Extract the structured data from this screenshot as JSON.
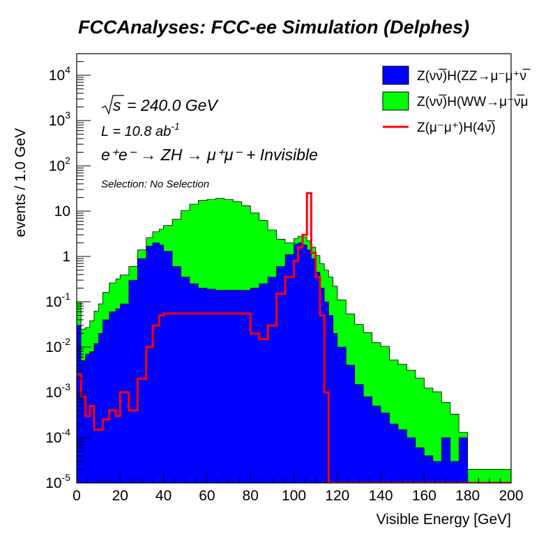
{
  "title": "FCCAnalyses: FCC-ee Simulation (Delphes)",
  "chart_data": {
    "type": "area",
    "xlabel": "Visible Energy [GeV]",
    "ylabel": "events / 1.0 GeV",
    "xlim": [
      0,
      200
    ],
    "ylim": [
      1e-05,
      30000
    ],
    "yscale": "log",
    "stacked": true,
    "grid": false,
    "legend_position": "top-right",
    "x_ticks": [
      "0",
      "20",
      "40",
      "60",
      "80",
      "100",
      "120",
      "140",
      "160",
      "180",
      "200"
    ],
    "y_ticks": [
      {
        "base": "10",
        "exp": "-5"
      },
      {
        "base": "10",
        "exp": "-4"
      },
      {
        "base": "10",
        "exp": "-3"
      },
      {
        "base": "10",
        "exp": "-2"
      },
      {
        "base": "10",
        "exp": "-1"
      },
      {
        "base": "1",
        "exp": ""
      },
      {
        "base": "10",
        "exp": ""
      },
      {
        "base": "10",
        "exp": "2"
      },
      {
        "base": "10",
        "exp": "3"
      },
      {
        "base": "10",
        "exp": "4"
      }
    ],
    "annotations": {
      "sqrt_s": "= 240.0 GeV",
      "lumi_text": "L = 10.8 ab",
      "lumi_exp": "-1",
      "process": "e⁺e⁻ → ZH → μ⁺μ⁻ + Invisible",
      "selection": "Selection: No Selection"
    },
    "x": [
      0,
      2,
      4,
      6,
      8,
      10,
      12,
      15,
      18,
      20,
      24,
      28,
      32,
      35,
      38,
      40,
      44,
      48,
      52,
      56,
      60,
      64,
      68,
      72,
      76,
      80,
      84,
      88,
      92,
      96,
      100,
      102,
      104,
      106,
      108,
      110,
      112,
      114,
      116,
      118,
      120,
      124,
      128,
      132,
      136,
      140,
      144,
      148,
      152,
      156,
      160,
      164,
      168,
      172,
      176,
      180,
      185,
      190,
      200
    ],
    "series": [
      {
        "name": "Z(νν̅)H(ZZ→μ⁻μ⁺νν̅)",
        "color": "#0000ff",
        "values": [
          0.03,
          0.005,
          0.007,
          0.008,
          0.012,
          0.02,
          0.04,
          0.06,
          0.07,
          0.09,
          0.3,
          0.9,
          1.7,
          2.0,
          1.8,
          1.3,
          0.6,
          0.35,
          0.25,
          0.2,
          0.19,
          0.18,
          0.18,
          0.18,
          0.18,
          0.2,
          0.25,
          0.35,
          0.6,
          1.1,
          1.9,
          2.0,
          1.8,
          1.4,
          0.9,
          0.45,
          0.2,
          0.1,
          0.05,
          0.02,
          0.01,
          0.004,
          0.0015,
          0.0008,
          0.0005,
          0.00035,
          0.0002,
          0.00015,
          0.0001,
          6e-05,
          4e-05,
          3e-05,
          0.0001,
          3e-05,
          0.0001,
          1e-05,
          1e-05,
          1e-05,
          1e-05
        ]
      },
      {
        "name": "Z(νν̅)H(WW→μ⁻ν̅μ⁺ν)",
        "color": "#00ff00",
        "values": [
          0.07,
          0.02,
          0.02,
          0.03,
          0.05,
          0.07,
          0.12,
          0.2,
          0.25,
          0.3,
          0.3,
          0.5,
          0.9,
          1.5,
          2.2,
          3.5,
          6,
          10,
          14,
          17,
          18,
          19,
          18,
          16,
          13,
          9,
          6,
          3.5,
          1.8,
          0.9,
          0.6,
          0.8,
          0.9,
          0.8,
          0.7,
          0.6,
          0.5,
          0.4,
          0.3,
          0.2,
          0.1,
          0.05,
          0.03,
          0.02,
          0.012,
          0.01,
          0.005,
          0.004,
          0.003,
          0.002,
          0.0012,
          0.001,
          0.0005,
          0.0003,
          3e-05,
          1e-05,
          1e-05,
          1e-05,
          1e-05
        ]
      },
      {
        "name": "Z(μ⁻μ⁺)H(4ν̅)",
        "color": "#ff0000",
        "style": "line",
        "values": [
          0.0025,
          0.0008,
          0.0003,
          0.0005,
          0.00015,
          0.00015,
          0.00025,
          0.0004,
          0.0003,
          0.001,
          0.0004,
          0.002,
          0.01,
          0.03,
          0.05,
          0.055,
          0.055,
          0.055,
          0.055,
          0.055,
          0.055,
          0.055,
          0.055,
          0.055,
          0.055,
          0.02,
          0.015,
          0.03,
          0.15,
          0.35,
          0.8,
          1.6,
          3.0,
          25,
          1.2,
          0.35,
          0.05,
          0.001,
          1e-05,
          1e-05,
          1e-05,
          1e-05,
          1e-05,
          1e-05,
          1e-05,
          1e-05,
          1e-05,
          1e-05,
          1e-05,
          1e-05,
          1e-05,
          1e-05,
          1e-05,
          1e-05,
          1e-05,
          1e-05,
          1e-05,
          1e-05,
          1e-05
        ]
      }
    ]
  },
  "legend": {
    "items": [
      {
        "label": "Z(νν̅)H(ZZ→μ⁻μ⁺ν̅",
        "color": "#0000ff",
        "kind": "box"
      },
      {
        "label": "Z(νν̅)H(WW→μ⁻ν̅μ",
        "color": "#00ff00",
        "kind": "box"
      },
      {
        "label": "Z(μ⁻μ⁺)H(4ν̅)",
        "color": "#ff0000",
        "kind": "line"
      }
    ]
  }
}
